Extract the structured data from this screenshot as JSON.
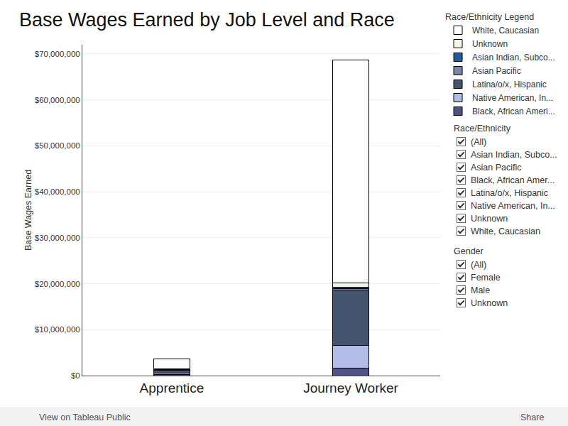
{
  "chart_data": {
    "type": "bar",
    "title": "Base Wages Earned by Job Level and Race",
    "y_label": "Base Wages Earned",
    "categories": [
      "Apprentice",
      "Journey Worker"
    ],
    "stacked": true,
    "grid": true,
    "legend": "right",
    "legend_title": "Race/Ethnicity Legend",
    "series": [
      {
        "name": "Black, African Ameri...",
        "color": "#4e5487",
        "values": [
          300000,
          1700000
        ]
      },
      {
        "name": "Native American, In...",
        "color": "#b3bde8",
        "values": [
          300000,
          4800000
        ]
      },
      {
        "name": "Latina/o/x, Hispanic",
        "color": "#44546f",
        "values": [
          600000,
          12100000
        ]
      },
      {
        "name": "Asian Pacific",
        "color": "#7a8aa6",
        "values": [
          50000,
          300000
        ]
      },
      {
        "name": "Asian Indian, Subco...",
        "color": "#1f5c99",
        "values": [
          50000,
          300000
        ]
      },
      {
        "name": "Unknown",
        "color": "#f5f5e6",
        "values": [
          100000,
          1000000
        ]
      },
      {
        "name": "White, Caucasian",
        "color": "#ffffff",
        "values": [
          2300000,
          48500000
        ]
      }
    ],
    "ylim": [
      0,
      72000000
    ],
    "yticks": [
      {
        "value": 0,
        "label": "$0"
      },
      {
        "value": 10000000,
        "label": "$10,000,000"
      },
      {
        "value": 20000000,
        "label": "$20,000,000"
      },
      {
        "value": 30000000,
        "label": "$30,000,000"
      },
      {
        "value": 40000000,
        "label": "$40,000,000"
      },
      {
        "value": 50000000,
        "label": "$50,000,000"
      },
      {
        "value": 60000000,
        "label": "$60,000,000"
      },
      {
        "value": 70000000,
        "label": "$70,000,000"
      }
    ]
  },
  "filters": [
    {
      "title": "Race/Ethnicity",
      "options": [
        "(All)",
        "Asian Indian, Subco...",
        "Asian Pacific",
        "Black, African Amer...",
        "Latina/o/x, Hispanic",
        "Native American, In...",
        "Unknown",
        "White, Caucasian"
      ]
    },
    {
      "title": "Gender",
      "options": [
        "(All)",
        "Female",
        "Male",
        "Unknown"
      ]
    }
  ],
  "footer": {
    "left": "View on Tableau Public",
    "right": "Share"
  }
}
